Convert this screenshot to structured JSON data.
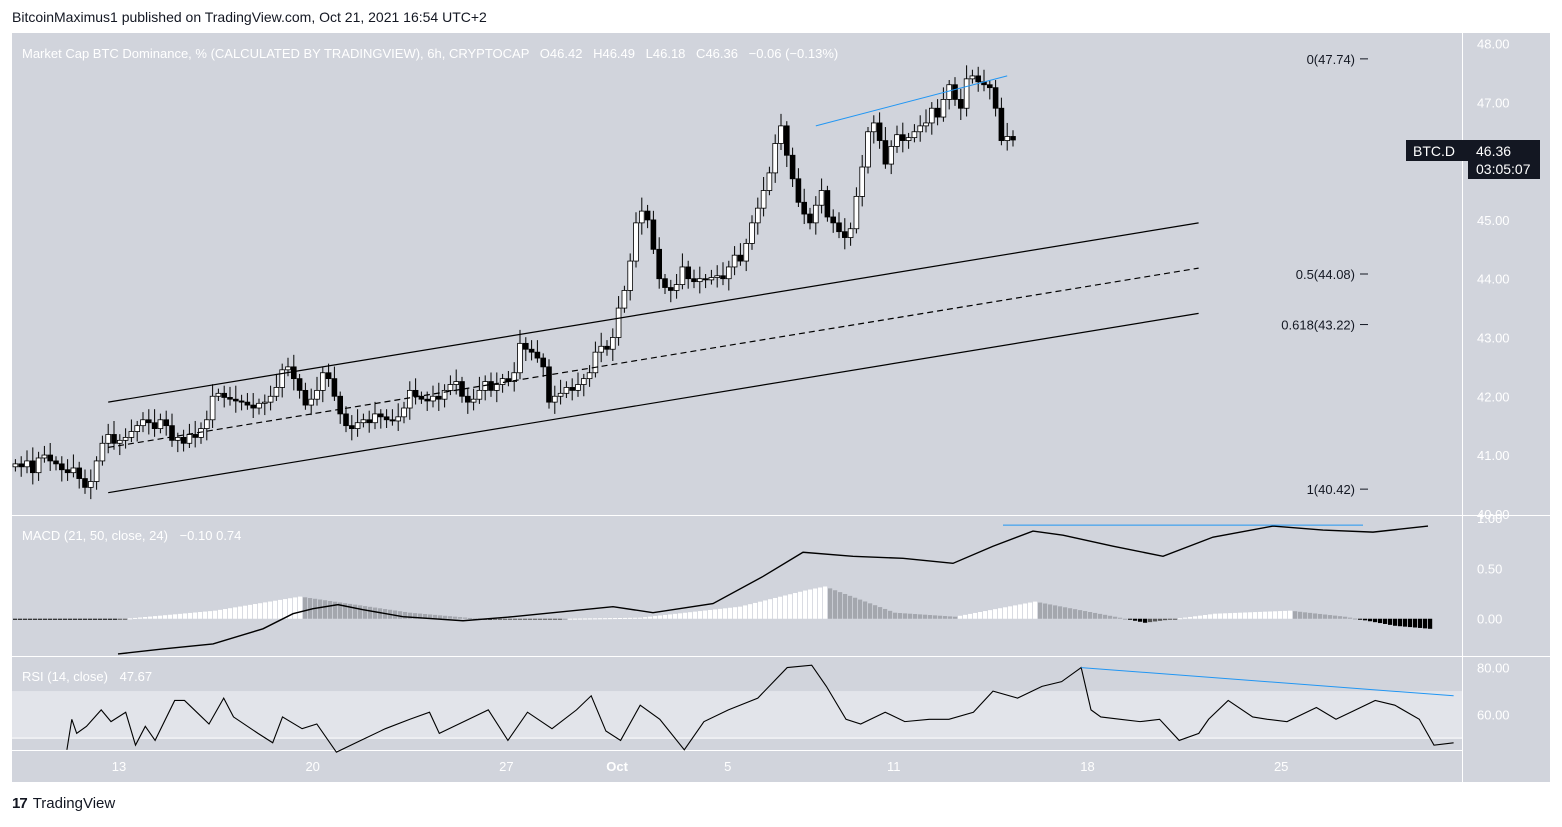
{
  "header": {
    "publisher": "BitcoinMaximus1 published on TradingView.com, Oct 21, 2021 16:54 UTC+2"
  },
  "legend": {
    "title": "Market Cap BTC Dominance, % (CALCULATED BY TRADINGVIEW), 6h, CRYPTOCAP",
    "ohlc": [
      {
        "k": "O",
        "v": "46.42"
      },
      {
        "k": "H",
        "v": "46.49"
      },
      {
        "k": "L",
        "v": "46.18"
      },
      {
        "k": "C",
        "v": "46.36"
      }
    ],
    "change": "−0.06 (−0.13%)"
  },
  "last_price": {
    "symbol": "BTC.D",
    "value": "46.36",
    "countdown": "03:05:07"
  },
  "fib_labels": [
    {
      "text": "0(47.74)",
      "value": 47.74
    },
    {
      "text": "0.5(44.08)",
      "value": 44.08
    },
    {
      "text": "0.618(43.22)",
      "value": 43.22
    },
    {
      "text": "1(40.42)",
      "value": 40.42
    }
  ],
  "macd": {
    "label": "MACD (21, 50, close, 24)",
    "values": "−0.10  0.74",
    "ticks": [
      "1.00",
      "0.50",
      "0.00"
    ]
  },
  "rsi": {
    "label": "RSI (14, close)",
    "value": "47.67",
    "ticks": [
      "80.00",
      "60.00"
    ]
  },
  "footer": {
    "brand": "TradingView",
    "logo": "17"
  },
  "colors": {
    "accent": "#2196f3",
    "bg": "#d1d4dc",
    "band": "#e2e4ea",
    "up": "#ffffff",
    "down": "#000000"
  },
  "chart_data": {
    "type": "candlestick",
    "price_axis": {
      "ticks": [
        48,
        47,
        46,
        45,
        44,
        43,
        42,
        41,
        40
      ],
      "ylim": [
        39.98,
        48.18
      ]
    },
    "x_axis": {
      "ticks": [
        {
          "label": "13",
          "date": "2021-09-13"
        },
        {
          "label": "20",
          "date": "2021-09-20"
        },
        {
          "label": "27",
          "date": "2021-09-27"
        },
        {
          "label": "Oct",
          "date": "2021-10-01"
        },
        {
          "label": "5",
          "date": "2021-10-05"
        },
        {
          "label": "11",
          "date": "2021-10-11"
        },
        {
          "label": "18",
          "date": "2021-10-18"
        },
        {
          "label": "25",
          "date": "2021-10-25"
        }
      ]
    },
    "closes": [
      40.85,
      40.8,
      40.9,
      40.7,
      40.95,
      41.0,
      40.9,
      40.85,
      40.75,
      40.7,
      40.78,
      40.6,
      40.45,
      40.55,
      40.9,
      41.2,
      41.35,
      41.2,
      41.25,
      41.3,
      41.4,
      41.5,
      41.6,
      41.55,
      41.45,
      41.6,
      41.5,
      41.25,
      41.3,
      41.2,
      41.35,
      41.3,
      41.45,
      41.6,
      42.0,
      42.05,
      41.98,
      41.95,
      41.92,
      41.9,
      41.85,
      41.8,
      41.88,
      41.9,
      42.0,
      42.15,
      42.45,
      42.5,
      42.3,
      42.1,
      41.85,
      41.95,
      42.1,
      42.4,
      42.3,
      42.0,
      41.7,
      41.5,
      41.45,
      41.55,
      41.6,
      41.55,
      41.7,
      41.65,
      41.6,
      41.58,
      41.65,
      41.8,
      42.1,
      42.0,
      41.95,
      41.92,
      42.0,
      41.95,
      42.1,
      42.2,
      42.25,
      42.0,
      41.9,
      41.95,
      42.1,
      42.25,
      42.1,
      42.2,
      42.3,
      42.25,
      42.4,
      42.9,
      42.8,
      42.75,
      42.65,
      42.5,
      41.9,
      42.0,
      42.05,
      42.15,
      42.1,
      42.2,
      42.3,
      42.4,
      42.75,
      42.85,
      42.8,
      43.0,
      43.5,
      43.8,
      44.3,
      44.95,
      45.15,
      45.0,
      44.5,
      44.0,
      43.85,
      43.8,
      43.9,
      44.2,
      44.0,
      43.95,
      44.0,
      43.98,
      44.02,
      44.05,
      44.0,
      44.2,
      44.4,
      44.3,
      44.6,
      44.95,
      45.2,
      45.5,
      45.8,
      46.3,
      46.6,
      46.1,
      45.7,
      45.3,
      45.1,
      44.95,
      45.25,
      45.5,
      45.05,
      44.95,
      44.8,
      44.7,
      44.85,
      45.4,
      45.9,
      46.5,
      46.65,
      46.35,
      45.95,
      46.25,
      46.45,
      46.35,
      46.4,
      46.5,
      46.6,
      46.65,
      46.9,
      46.75,
      47.05,
      47.3,
      47.05,
      46.9,
      47.4,
      47.45,
      47.35,
      47.3,
      47.25,
      46.9,
      46.35,
      46.42,
      46.36
    ],
    "trend_lines": [
      {
        "name": "channel-upper",
        "from": {
          "bar": 16,
          "price": 41.9
        },
        "to": {
          "bar": 204,
          "price": 44.95
        }
      },
      {
        "name": "channel-middle",
        "dashed": true,
        "from": {
          "bar": 16,
          "price": 41.13
        },
        "to": {
          "bar": 204,
          "price": 44.18
        }
      },
      {
        "name": "channel-lower",
        "from": {
          "bar": 16,
          "price": 40.36
        },
        "to": {
          "bar": 204,
          "price": 43.41
        }
      },
      {
        "name": "price-divergence",
        "color": "#2196f3",
        "from": {
          "bar": 138,
          "price": 46.6
        },
        "to": {
          "bar": 171,
          "price": 47.45
        }
      }
    ],
    "macd_axis": {
      "ticks": [
        1.0,
        0.5,
        0.0
      ],
      "ylim": [
        -0.37,
        1.02
      ]
    },
    "macd_line": [
      [
        21,
        -0.35
      ],
      [
        30,
        -0.3
      ],
      [
        40,
        -0.25
      ],
      [
        50,
        -0.1
      ],
      [
        56,
        0.05
      ],
      [
        60,
        0.1
      ],
      [
        65,
        0.14
      ],
      [
        70,
        0.09
      ],
      [
        78,
        0.02
      ],
      [
        90,
        -0.02
      ],
      [
        100,
        0.02
      ],
      [
        110,
        0.07
      ],
      [
        120,
        0.12
      ],
      [
        128,
        0.06
      ],
      [
        140,
        0.15
      ],
      [
        150,
        0.42
      ],
      [
        158,
        0.66
      ],
      [
        168,
        0.62
      ],
      [
        178,
        0.6
      ],
      [
        188,
        0.55
      ],
      [
        196,
        0.72
      ],
      [
        204,
        0.87
      ],
      [
        210,
        0.83
      ],
      [
        220,
        0.72
      ],
      [
        230,
        0.62
      ],
      [
        240,
        0.81
      ],
      [
        252,
        0.92
      ],
      [
        262,
        0.88
      ],
      [
        272,
        0.86
      ],
      [
        283,
        0.92
      ]
    ],
    "macd_hist": [
      [
        20,
        -0.01
      ],
      [
        40,
        0.08
      ],
      [
        57,
        0.22
      ],
      [
        79,
        0.06
      ],
      [
        95,
        -0.01
      ],
      [
        110,
        0.0
      ],
      [
        125,
        0.01
      ],
      [
        145,
        0.12
      ],
      [
        158,
        0.28
      ],
      [
        162,
        0.32
      ],
      [
        176,
        0.06
      ],
      [
        188,
        0.02
      ],
      [
        204,
        0.17
      ],
      [
        220,
        0.02
      ],
      [
        226,
        -0.04
      ],
      [
        240,
        0.05
      ],
      [
        255,
        0.08
      ],
      [
        266,
        0.02
      ],
      [
        276,
        -0.07
      ],
      [
        283,
        -0.1
      ]
    ],
    "macd_divergence": {
      "color": "#2196f3",
      "from": [
        198,
        0.93
      ],
      "to": [
        270,
        0.93
      ]
    },
    "rsi_axis": {
      "ticks": [
        80,
        60
      ],
      "band": [
        70,
        50
      ],
      "ylim": [
        44.5,
        84.5
      ]
    },
    "rsi_line": [
      [
        11,
        45
      ],
      [
        12,
        58
      ],
      [
        13,
        52
      ],
      [
        15,
        55
      ],
      [
        18,
        62
      ],
      [
        20,
        57
      ],
      [
        23,
        61
      ],
      [
        25,
        47
      ],
      [
        27,
        55
      ],
      [
        29,
        49
      ],
      [
        33,
        66
      ],
      [
        35,
        66
      ],
      [
        38,
        60
      ],
      [
        40,
        56
      ],
      [
        43,
        67
      ],
      [
        45,
        59
      ],
      [
        50,
        52
      ],
      [
        53,
        48
      ],
      [
        55,
        59
      ],
      [
        59,
        54
      ],
      [
        62,
        56
      ],
      [
        66,
        44
      ],
      [
        71,
        49
      ],
      [
        76,
        54
      ],
      [
        81,
        58
      ],
      [
        85,
        61
      ],
      [
        87,
        52
      ],
      [
        92,
        57
      ],
      [
        97,
        62
      ],
      [
        101,
        49
      ],
      [
        105,
        61
      ],
      [
        110,
        54
      ],
      [
        115,
        62
      ],
      [
        118,
        68
      ],
      [
        121,
        53
      ],
      [
        124,
        49
      ],
      [
        128,
        64
      ],
      [
        132,
        58
      ],
      [
        137,
        45
      ],
      [
        141,
        57
      ],
      [
        146,
        62
      ],
      [
        152,
        67
      ],
      [
        158,
        80
      ],
      [
        163,
        81
      ],
      [
        166,
        72
      ],
      [
        170,
        58
      ],
      [
        173,
        56
      ],
      [
        178,
        61
      ],
      [
        182,
        57
      ],
      [
        187,
        58
      ],
      [
        191,
        58
      ],
      [
        196,
        61
      ],
      [
        200,
        70
      ],
      [
        205,
        67
      ],
      [
        210,
        72
      ],
      [
        214,
        74
      ],
      [
        218,
        80
      ],
      [
        220,
        62
      ],
      [
        222,
        59
      ],
      [
        226,
        58
      ],
      [
        230,
        57
      ],
      [
        234,
        58
      ],
      [
        238,
        49
      ],
      [
        242,
        52
      ],
      [
        244,
        58
      ],
      [
        248,
        66
      ],
      [
        253,
        59
      ],
      [
        256,
        58
      ],
      [
        260,
        57
      ],
      [
        266,
        63
      ],
      [
        270,
        58
      ],
      [
        273,
        61
      ],
      [
        278,
        66
      ],
      [
        282,
        64
      ],
      [
        287,
        58
      ],
      [
        290,
        47
      ],
      [
        294,
        48
      ]
    ],
    "rsi_divergence": {
      "color": "#2196f3",
      "from": [
        218,
        80
      ],
      "to": [
        294,
        68
      ]
    }
  }
}
